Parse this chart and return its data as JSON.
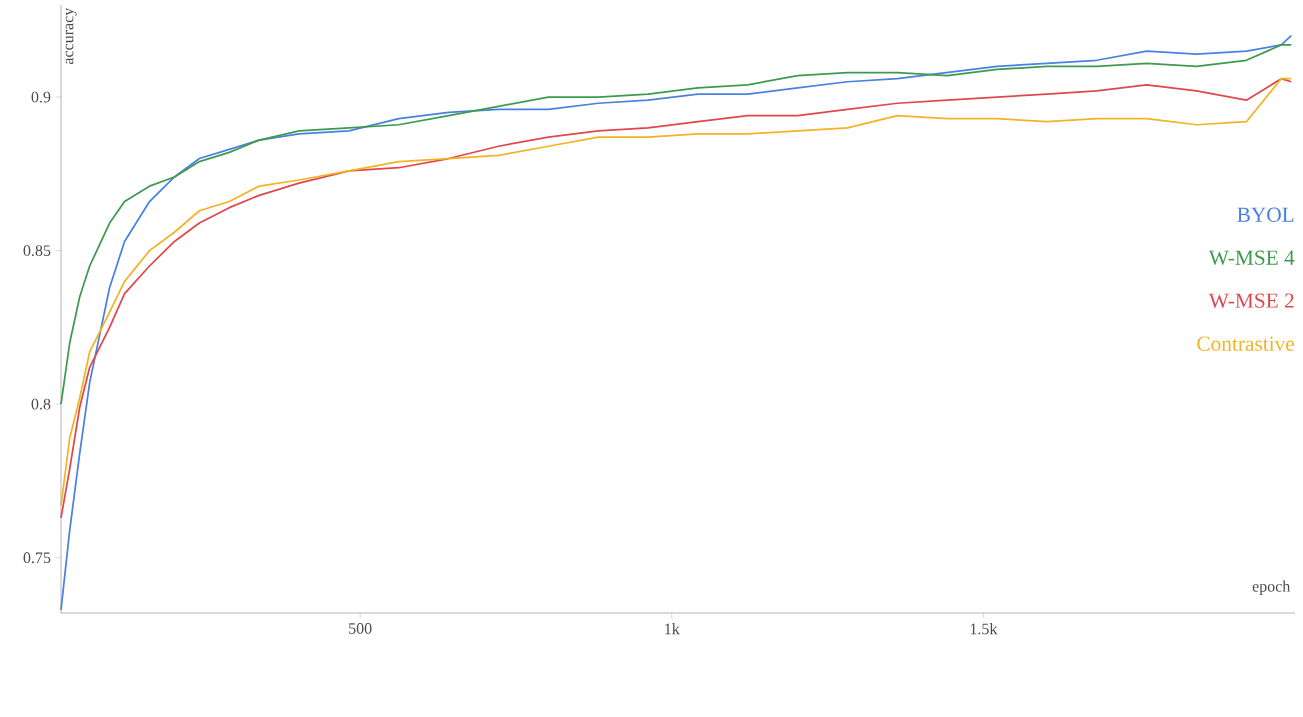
{
  "chart_data": {
    "type": "line",
    "xlabel": "epoch",
    "ylabel": "accuracy",
    "x": [
      20,
      34,
      50,
      66,
      98,
      122,
      162,
      202,
      242,
      290,
      338,
      402,
      482,
      562,
      642,
      722,
      802,
      882,
      962,
      1042,
      1122,
      1202,
      1282,
      1362,
      1442,
      1522,
      1602,
      1682,
      1762,
      1842,
      1922,
      1978,
      1994
    ],
    "series": [
      {
        "name": "BYOL",
        "color": "#4a80e2",
        "values": [
          0.733,
          0.759,
          0.784,
          0.807,
          0.838,
          0.853,
          0.866,
          0.874,
          0.88,
          0.883,
          0.886,
          0.888,
          0.889,
          0.893,
          0.895,
          0.896,
          0.896,
          0.898,
          0.899,
          0.901,
          0.901,
          0.903,
          0.905,
          0.906,
          0.908,
          0.91,
          0.911,
          0.912,
          0.915,
          0.914,
          0.915,
          0.917,
          0.92
        ]
      },
      {
        "name": "W-MSE 4",
        "color": "#3d9a4f",
        "values": [
          0.8,
          0.82,
          0.835,
          0.845,
          0.859,
          0.866,
          0.871,
          0.874,
          0.879,
          0.882,
          0.886,
          0.889,
          0.89,
          0.891,
          0.894,
          0.897,
          0.9,
          0.9,
          0.901,
          0.903,
          0.904,
          0.907,
          0.908,
          0.908,
          0.907,
          0.909,
          0.91,
          0.91,
          0.911,
          0.91,
          0.912,
          0.917,
          0.917
        ]
      },
      {
        "name": "W-MSE 2",
        "color": "#e0474c",
        "values": [
          0.763,
          0.779,
          0.799,
          0.812,
          0.825,
          0.836,
          0.845,
          0.853,
          0.859,
          0.864,
          0.868,
          0.872,
          0.876,
          0.877,
          0.88,
          0.884,
          0.887,
          0.889,
          0.89,
          0.892,
          0.894,
          0.894,
          0.896,
          0.898,
          0.899,
          0.9,
          0.901,
          0.902,
          0.904,
          0.902,
          0.899,
          0.906,
          0.905
        ]
      },
      {
        "name": "Contrastive",
        "color": "#f2b325",
        "values": [
          0.767,
          0.789,
          0.802,
          0.817,
          0.83,
          0.84,
          0.85,
          0.856,
          0.863,
          0.866,
          0.871,
          0.873,
          0.876,
          0.879,
          0.88,
          0.881,
          0.884,
          0.887,
          0.887,
          0.888,
          0.888,
          0.889,
          0.89,
          0.894,
          0.893,
          0.893,
          0.892,
          0.893,
          0.893,
          0.891,
          0.892,
          0.906,
          0.906
        ]
      }
    ],
    "xlim": [
      20,
      2000
    ],
    "ylim": [
      0.732,
      0.93
    ],
    "xticks": [
      500,
      {
        "value": 1000,
        "label": "1k"
      },
      {
        "value": 1500,
        "label": "1.5k"
      }
    ],
    "yticks": [
      {
        "value": 0.75,
        "label": "0.75"
      },
      {
        "value": 0.8,
        "label": "0.8"
      },
      {
        "value": 0.85,
        "label": "0.85"
      },
      {
        "value": 0.9,
        "label": "0.9"
      }
    ],
    "grid": false,
    "legend": "right",
    "marker": "none",
    "line_style": "solid"
  }
}
